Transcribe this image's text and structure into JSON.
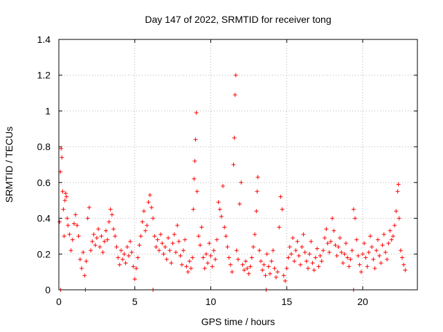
{
  "chart_data": {
    "type": "scatter",
    "title": "Day 147 of 2022, SRMTID for receiver tong",
    "xlabel": "GPS time / hours",
    "ylabel": "SRMTID / TECUs",
    "xlim": [
      0,
      23.6
    ],
    "ylim": [
      0,
      1.4
    ],
    "x_ticks": [
      0,
      5,
      10,
      15,
      20
    ],
    "x_tick_labels": [
      "0",
      "5",
      "10",
      "15",
      "20"
    ],
    "y_ticks": [
      0,
      0.2,
      0.4,
      0.6,
      0.8,
      1.0,
      1.2,
      1.4
    ],
    "y_tick_labels": [
      "0",
      "0.2",
      "0.4",
      "0.6",
      "0.8",
      "1",
      "1.2",
      "1.4"
    ],
    "grid": true,
    "marker": "+",
    "series": [
      {
        "name": "SRMTID",
        "color": "#ff0000",
        "points": [
          [
            0.05,
            0.38
          ],
          [
            0.1,
            0.66
          ],
          [
            0.15,
            0.79
          ],
          [
            0.2,
            0.74
          ],
          [
            0.25,
            0.55
          ],
          [
            0.3,
            0.45
          ],
          [
            0.35,
            0.3
          ],
          [
            0.4,
            0.5
          ],
          [
            0.45,
            0.54
          ],
          [
            0.5,
            0.52
          ],
          [
            0.55,
            0.4
          ],
          [
            0.6,
            0.36
          ],
          [
            0.7,
            0.31
          ],
          [
            0.8,
            0.22
          ],
          [
            0.9,
            0.28
          ],
          [
            1.0,
            0.37
          ],
          [
            1.1,
            0.42
          ],
          [
            1.2,
            0.36
          ],
          [
            1.3,
            0.3
          ],
          [
            1.4,
            0.17
          ],
          [
            1.5,
            0.12
          ],
          [
            1.6,
            0.21
          ],
          [
            1.7,
            0.08
          ],
          [
            1.8,
            0.16
          ],
          [
            1.9,
            0.4
          ],
          [
            2.0,
            0.46
          ],
          [
            2.1,
            0.22
          ],
          [
            2.2,
            0.27
          ],
          [
            2.3,
            0.31
          ],
          [
            2.4,
            0.25
          ],
          [
            2.5,
            0.29
          ],
          [
            2.6,
            0.34
          ],
          [
            2.7,
            0.24
          ],
          [
            2.8,
            0.3
          ],
          [
            2.9,
            0.21
          ],
          [
            3.0,
            0.27
          ],
          [
            3.1,
            0.33
          ],
          [
            3.2,
            0.28
          ],
          [
            3.3,
            0.38
          ],
          [
            3.4,
            0.45
          ],
          [
            3.5,
            0.42
          ],
          [
            3.6,
            0.34
          ],
          [
            3.7,
            0.3
          ],
          [
            3.8,
            0.24
          ],
          [
            3.9,
            0.18
          ],
          [
            4.0,
            0.14
          ],
          [
            4.1,
            0.22
          ],
          [
            4.2,
            0.17
          ],
          [
            4.3,
            0.2
          ],
          [
            4.4,
            0.15
          ],
          [
            4.5,
            0.24
          ],
          [
            4.6,
            0.19
          ],
          [
            4.7,
            0.27
          ],
          [
            4.8,
            0.21
          ],
          [
            4.9,
            0.13
          ],
          [
            5.0,
            0.06
          ],
          [
            5.1,
            0.12
          ],
          [
            5.2,
            0.18
          ],
          [
            5.3,
            0.25
          ],
          [
            5.4,
            0.3
          ],
          [
            5.5,
            0.38
          ],
          [
            5.6,
            0.44
          ],
          [
            5.7,
            0.33
          ],
          [
            5.8,
            0.36
          ],
          [
            5.9,
            0.49
          ],
          [
            6.0,
            0.53
          ],
          [
            6.1,
            0.46
          ],
          [
            6.2,
            0.4
          ],
          [
            6.3,
            0.3
          ],
          [
            6.4,
            0.24
          ],
          [
            6.5,
            0.28
          ],
          [
            6.6,
            0.22
          ],
          [
            6.7,
            0.31
          ],
          [
            6.8,
            0.26
          ],
          [
            6.9,
            0.2
          ],
          [
            7.0,
            0.24
          ],
          [
            7.1,
            0.17
          ],
          [
            7.2,
            0.29
          ],
          [
            7.3,
            0.22
          ],
          [
            7.4,
            0.15
          ],
          [
            7.5,
            0.26
          ],
          [
            7.6,
            0.31
          ],
          [
            7.7,
            0.21
          ],
          [
            7.8,
            0.36
          ],
          [
            7.9,
            0.27
          ],
          [
            8.0,
            0.19
          ],
          [
            8.1,
            0.14
          ],
          [
            8.2,
            0.22
          ],
          [
            8.3,
            0.28
          ],
          [
            8.4,
            0.13
          ],
          [
            8.5,
            0.1
          ],
          [
            8.6,
            0.16
          ],
          [
            8.7,
            0.12
          ],
          [
            8.8,
            0.18
          ],
          [
            8.85,
            0.45
          ],
          [
            8.9,
            0.62
          ],
          [
            8.95,
            0.72
          ],
          [
            9.0,
            0.84
          ],
          [
            9.05,
            0.99
          ],
          [
            9.1,
            0.55
          ],
          [
            9.2,
            0.3
          ],
          [
            9.3,
            0.25
          ],
          [
            9.4,
            0.35
          ],
          [
            9.5,
            0.18
          ],
          [
            9.6,
            0.12
          ],
          [
            9.7,
            0.2
          ],
          [
            9.8,
            0.15
          ],
          [
            9.9,
            0.26
          ],
          [
            10.0,
            0.19
          ],
          [
            10.1,
            0.13
          ],
          [
            10.2,
            0.22
          ],
          [
            10.3,
            0.17
          ],
          [
            10.4,
            0.28
          ],
          [
            10.5,
            0.49
          ],
          [
            10.6,
            0.45
          ],
          [
            10.7,
            0.41
          ],
          [
            10.8,
            0.58
          ],
          [
            10.9,
            0.35
          ],
          [
            11.0,
            0.3
          ],
          [
            11.1,
            0.24
          ],
          [
            11.2,
            0.18
          ],
          [
            11.3,
            0.14
          ],
          [
            11.4,
            0.1
          ],
          [
            11.5,
            0.7
          ],
          [
            11.55,
            0.85
          ],
          [
            11.6,
            1.09
          ],
          [
            11.65,
            1.2
          ],
          [
            11.7,
            0.22
          ],
          [
            11.8,
            0.17
          ],
          [
            11.9,
            0.48
          ],
          [
            12.0,
            0.6
          ],
          [
            12.1,
            0.14
          ],
          [
            12.2,
            0.11
          ],
          [
            12.3,
            0.16
          ],
          [
            12.4,
            0.12
          ],
          [
            12.5,
            0.09
          ],
          [
            12.6,
            0.13
          ],
          [
            12.7,
            0.18
          ],
          [
            12.8,
            0.24
          ],
          [
            12.9,
            0.31
          ],
          [
            13.0,
            0.44
          ],
          [
            13.05,
            0.55
          ],
          [
            13.1,
            0.63
          ],
          [
            13.2,
            0.22
          ],
          [
            13.3,
            0.16
          ],
          [
            13.4,
            0.11
          ],
          [
            13.5,
            0.14
          ],
          [
            13.6,
            0.08
          ],
          [
            13.7,
            0.2
          ],
          [
            13.8,
            0.13
          ],
          [
            13.9,
            0.09
          ],
          [
            14.0,
            0.16
          ],
          [
            14.1,
            0.22
          ],
          [
            14.2,
            0.12
          ],
          [
            14.3,
            0.07
          ],
          [
            14.4,
            0.1
          ],
          [
            14.5,
            0.35
          ],
          [
            14.6,
            0.52
          ],
          [
            14.7,
            0.45
          ],
          [
            14.8,
            0.08
          ],
          [
            14.9,
            0.05
          ],
          [
            15.0,
            0.12
          ],
          [
            15.1,
            0.18
          ],
          [
            15.2,
            0.24
          ],
          [
            15.3,
            0.2
          ],
          [
            15.4,
            0.29
          ],
          [
            15.5,
            0.16
          ],
          [
            15.6,
            0.22
          ],
          [
            15.7,
            0.27
          ],
          [
            15.8,
            0.19
          ],
          [
            15.9,
            0.14
          ],
          [
            16.0,
            0.24
          ],
          [
            16.1,
            0.31
          ],
          [
            16.2,
            0.21
          ],
          [
            16.3,
            0.16
          ],
          [
            16.4,
            0.12
          ],
          [
            16.5,
            0.2
          ],
          [
            16.6,
            0.27
          ],
          [
            16.7,
            0.15
          ],
          [
            16.8,
            0.11
          ],
          [
            16.9,
            0.18
          ],
          [
            17.0,
            0.23
          ],
          [
            17.1,
            0.13
          ],
          [
            17.2,
            0.19
          ],
          [
            17.3,
            0.16
          ],
          [
            17.4,
            0.22
          ],
          [
            17.5,
            0.29
          ],
          [
            17.6,
            0.34
          ],
          [
            17.7,
            0.26
          ],
          [
            17.8,
            0.21
          ],
          [
            17.9,
            0.27
          ],
          [
            18.0,
            0.4
          ],
          [
            18.1,
            0.33
          ],
          [
            18.2,
            0.25
          ],
          [
            18.3,
            0.19
          ],
          [
            18.4,
            0.24
          ],
          [
            18.5,
            0.29
          ],
          [
            18.6,
            0.21
          ],
          [
            18.7,
            0.15
          ],
          [
            18.8,
            0.2
          ],
          [
            18.9,
            0.26
          ],
          [
            19.0,
            0.18
          ],
          [
            19.1,
            0.13
          ],
          [
            19.2,
            0.17
          ],
          [
            19.3,
            0.22
          ],
          [
            19.4,
            0.45
          ],
          [
            19.5,
            0.4
          ],
          [
            19.6,
            0.28
          ],
          [
            19.7,
            0.19
          ],
          [
            19.8,
            0.14
          ],
          [
            19.9,
            0.1
          ],
          [
            20.0,
            0.2
          ],
          [
            20.1,
            0.26
          ],
          [
            20.2,
            0.18
          ],
          [
            20.3,
            0.13
          ],
          [
            20.4,
            0.21
          ],
          [
            20.5,
            0.3
          ],
          [
            20.6,
            0.24
          ],
          [
            20.7,
            0.17
          ],
          [
            20.8,
            0.12
          ],
          [
            20.9,
            0.22
          ],
          [
            21.0,
            0.28
          ],
          [
            21.1,
            0.19
          ],
          [
            21.2,
            0.15
          ],
          [
            21.3,
            0.25
          ],
          [
            21.4,
            0.31
          ],
          [
            21.5,
            0.21
          ],
          [
            21.6,
            0.17
          ],
          [
            21.7,
            0.26
          ],
          [
            21.8,
            0.33
          ],
          [
            21.9,
            0.28
          ],
          [
            22.0,
            0.3
          ],
          [
            22.1,
            0.36
          ],
          [
            22.2,
            0.44
          ],
          [
            22.3,
            0.55
          ],
          [
            22.35,
            0.59
          ],
          [
            22.4,
            0.4
          ],
          [
            22.5,
            0.22
          ],
          [
            22.6,
            0.18
          ],
          [
            22.7,
            0.14
          ],
          [
            22.8,
            0.11
          ],
          [
            0.12,
            0.0
          ],
          [
            1.75,
            0.0
          ],
          [
            6.2,
            0.0
          ],
          [
            13.65,
            0.0
          ],
          [
            19.4,
            0.0
          ]
        ]
      }
    ]
  }
}
